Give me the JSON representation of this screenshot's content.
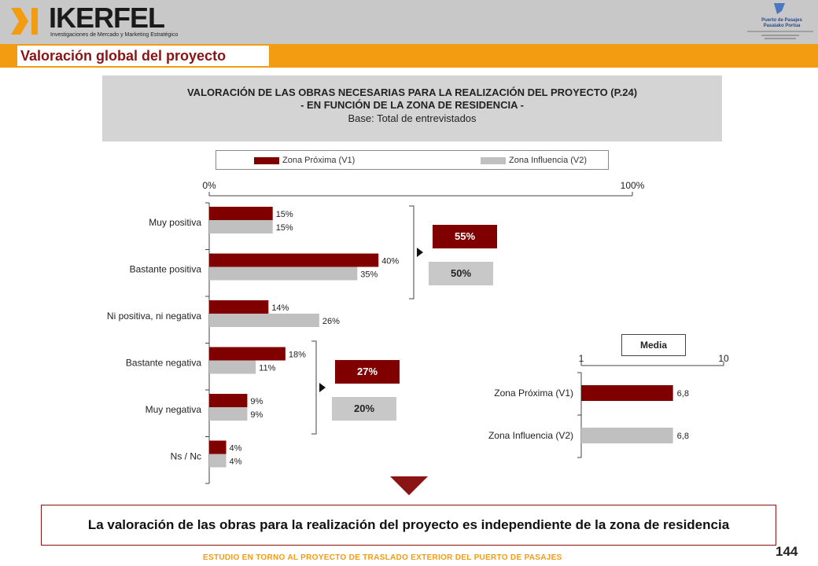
{
  "header": {
    "logo_text": "IKERFEL",
    "logo_sub": "Investigaciones de Mercado y Marketing Estratégico",
    "port_name": "Puerto de Pasajes Pasaiako Portua",
    "section_title": "Valoración global del proyecto"
  },
  "title": {
    "line1": "VALORACIÓN DE LAS OBRAS NECESARIAS PARA LA REALIZACIÓN DEL PROYECTO (P.24)",
    "line2": "- EN FUNCIÓN DE LA ZONA DE RESIDENCIA -",
    "line3": "Base: Total de entrevistados"
  },
  "legend": {
    "s1": "Zona Próxima (V1)",
    "s2": "Zona Influencia (V2)"
  },
  "colors": {
    "s1": "#800000",
    "s2": "#c0c0c0",
    "orange": "#f39c12",
    "header": "#c8c8c8"
  },
  "chart_data": [
    {
      "type": "bar",
      "orientation": "horizontal",
      "categories": [
        "Muy positiva",
        "Bastante positiva",
        "Ni positiva, ni negativa",
        "Bastante negativa",
        "Muy negativa",
        "Ns / Nc"
      ],
      "series": [
        {
          "name": "Zona Próxima (V1)",
          "values": [
            15,
            40,
            14,
            18,
            9,
            4
          ],
          "labels": [
            "15%",
            "40%",
            "14%",
            "18%",
            "9%",
            "4%"
          ]
        },
        {
          "name": "Zona Influencia (V2)",
          "values": [
            15,
            35,
            26,
            11,
            9,
            4
          ],
          "labels": [
            "15%",
            "35%",
            "26%",
            "11%",
            "9%",
            "4%"
          ]
        }
      ],
      "xlim": [
        0,
        100
      ],
      "x_tick_labels": [
        "0%",
        "100%"
      ],
      "annotations": {
        "positive": {
          "v1": "55%",
          "v2": "50%"
        },
        "negative": {
          "v1": "27%",
          "v2": "20%"
        }
      }
    },
    {
      "type": "bar",
      "orientation": "horizontal",
      "title": "Media",
      "categories": [
        "Zona Próxima (V1)",
        "Zona Influencia (V2)"
      ],
      "values": [
        6.8,
        6.8
      ],
      "labels": [
        "6,8",
        "6,8"
      ],
      "xlim": [
        1,
        10
      ],
      "x_tick_labels": [
        "1",
        "10"
      ]
    }
  ],
  "conclusion": "La valoración de las obras para la realización del proyecto es independiente de la zona de residencia",
  "footer": "ESTUDIO EN TORNO AL PROYECTO DE TRASLADO EXTERIOR DEL PUERTO DE PASAJES",
  "page_number": "144"
}
